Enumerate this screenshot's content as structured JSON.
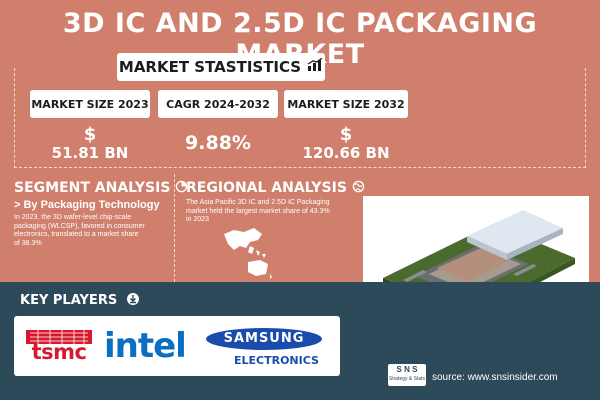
{
  "title": "3D IC AND 2.5D IC PACKAGING MARKET",
  "market_stats": {
    "heading": "MARKET STASTISTICS",
    "items": [
      {
        "label": "MARKET SIZE 2023",
        "symbol": "$",
        "value": "51.81 BN"
      },
      {
        "label": "CAGR 2024-2032",
        "value": "9.88%"
      },
      {
        "label": "MARKET SIZE 2032",
        "symbol": "$",
        "value": "120.66 BN"
      }
    ]
  },
  "segment": {
    "heading": "SEGMENT ANALYSIS",
    "subheading": "> By Packaging Technology",
    "text_lines": [
      "In 2023, the 3D wafer-level chip-scale",
      "packaging (WLCSP), favored in consumer",
      "electronics,  translated to a market share",
      "of 38.3%"
    ]
  },
  "regional": {
    "heading": "REGIONAL ANALYSIS",
    "text_lines": [
      "The Asia Pacific 3D IC and 2.5D IC Packaging",
      "market held the largest market share of 43.3%",
      "in 2023"
    ]
  },
  "key_players": {
    "heading": "KEY PLAYERS",
    "logos": [
      "tsmc",
      "intel",
      "SAMSUNG",
      "ELECTRONICS"
    ]
  },
  "source": "source: www.snsinsider.com",
  "sns_logo": {
    "top": "S N S",
    "bottom": "Strategy & Stats"
  },
  "colors": {
    "background": "#cf7f6b",
    "bottom_band": "#2d4a5a",
    "tsmc_red": "#d7192d",
    "intel_blue": "#0a6fc2",
    "samsung_blue": "#1a4cae"
  }
}
